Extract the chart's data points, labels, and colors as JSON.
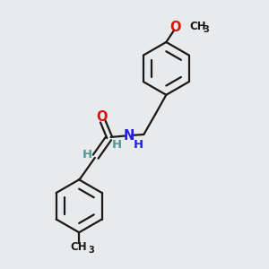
{
  "background_color": "#e8eaeb",
  "bond_color": "#1a1a1a",
  "N_color": "#2222dd",
  "O_color": "#dd1111",
  "H_color": "#4a9a9a",
  "text_color": "#1a1a1a",
  "figsize": [
    3.0,
    3.0
  ],
  "dpi": 100,
  "xlim": [
    0,
    10
  ],
  "ylim": [
    0,
    10
  ]
}
